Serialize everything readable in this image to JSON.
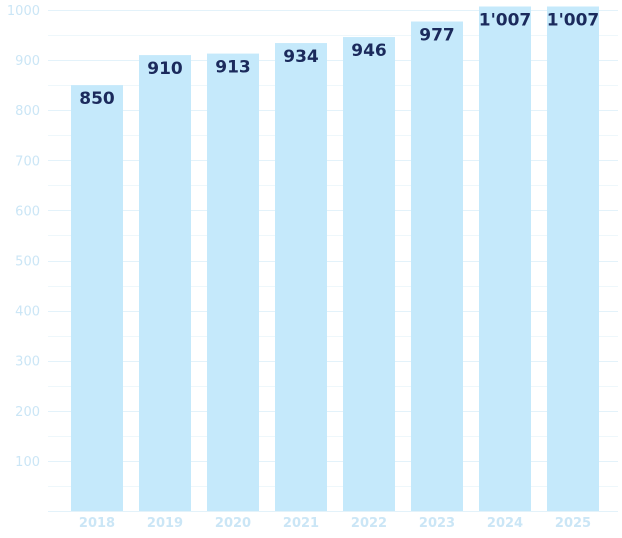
{
  "chart_data": {
    "type": "bar",
    "title": "",
    "xlabel": "",
    "ylabel": "",
    "categories": [
      "2018",
      "2019",
      "2020",
      "2021",
      "2022",
      "2023",
      "2024",
      "2025"
    ],
    "values": [
      850,
      910,
      913,
      934,
      946,
      977,
      1007,
      1007
    ],
    "value_labels": [
      "850",
      "910",
      "913",
      "934",
      "946",
      "977",
      "1'007",
      "1'007"
    ],
    "ylim": [
      0,
      1000
    ],
    "y_ticks": [
      100,
      200,
      300,
      400,
      500,
      600,
      700,
      800,
      900,
      1000
    ],
    "y_tick_labels": [
      "100",
      "200",
      "300",
      "400",
      "500",
      "600",
      "700",
      "800",
      "900",
      "1000"
    ],
    "grid": true,
    "legend": "none",
    "colors": {
      "bar": "#c5e9fb",
      "grid": "#e3f2fa",
      "axis_text": "#cbe6f6",
      "value_text": "#1b2a5c"
    }
  }
}
